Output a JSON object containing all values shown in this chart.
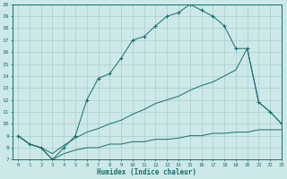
{
  "xlabel": "Humidex (Indice chaleur)",
  "xlim": [
    -0.5,
    23
  ],
  "ylim": [
    7,
    20
  ],
  "background_color": "#cce8e8",
  "grid_color": "#aacccc",
  "line_color": "#1a6b6b",
  "curve_upper_x": [
    0,
    1,
    2,
    3,
    4,
    5,
    6,
    7,
    8,
    9,
    10,
    11,
    12,
    13,
    14,
    15,
    16,
    17,
    18,
    19,
    20,
    21,
    22,
    23
  ],
  "curve_upper_y": [
    9.0,
    8.3,
    8.0,
    7.0,
    8.0,
    9.0,
    12.0,
    13.8,
    14.2,
    15.5,
    17.0,
    17.3,
    18.2,
    19.0,
    19.3,
    20.0,
    19.5,
    19.0,
    18.2,
    16.3,
    16.3,
    11.8,
    11.0,
    10.0
  ],
  "curve_middle_x": [
    0,
    1,
    2,
    3,
    4,
    5,
    6,
    7,
    8,
    9,
    10,
    11,
    12,
    13,
    14,
    15,
    16,
    17,
    18,
    19,
    20,
    21,
    22,
    23
  ],
  "curve_middle_y": [
    9.0,
    8.3,
    8.0,
    7.5,
    8.2,
    8.8,
    9.3,
    9.6,
    10.0,
    10.3,
    10.8,
    11.2,
    11.7,
    12.0,
    12.3,
    12.8,
    13.2,
    13.5,
    14.0,
    14.5,
    16.3,
    11.8,
    11.0,
    10.0
  ],
  "curve_bottom_x": [
    0,
    1,
    2,
    3,
    4,
    5,
    6,
    7,
    8,
    9,
    10,
    11,
    12,
    13,
    14,
    15,
    16,
    17,
    18,
    19,
    20,
    21,
    22,
    23
  ],
  "curve_bottom_y": [
    9.0,
    8.3,
    8.0,
    7.0,
    7.5,
    7.8,
    8.0,
    8.0,
    8.3,
    8.3,
    8.5,
    8.5,
    8.7,
    8.7,
    8.8,
    9.0,
    9.0,
    9.2,
    9.2,
    9.3,
    9.3,
    9.5,
    9.5,
    9.5
  ]
}
